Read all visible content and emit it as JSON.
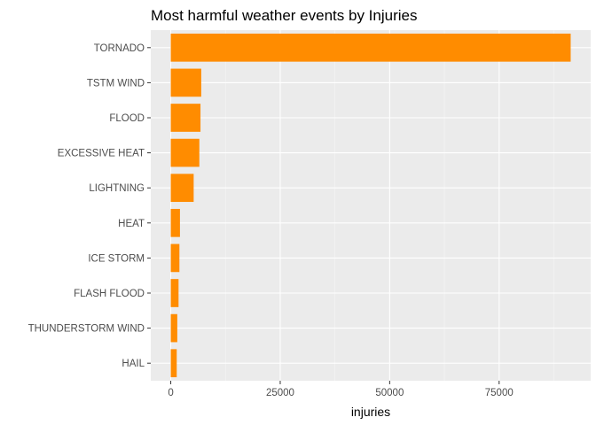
{
  "chart_data": {
    "type": "bar",
    "orientation": "horizontal",
    "title": "Most harmful weather events by Injuries",
    "xlabel": "injuries",
    "ylabel": "",
    "categories": [
      "TORNADO",
      "TSTM WIND",
      "FLOOD",
      "EXCESSIVE HEAT",
      "LIGHTNING",
      "HEAT",
      "ICE STORM",
      "FLASH FLOOD",
      "THUNDERSTORM WIND",
      "HAIL"
    ],
    "values": [
      91346,
      6957,
      6789,
      6525,
      5230,
      2100,
      1975,
      1777,
      1488,
      1361
    ],
    "xlim": [
      -4567,
      95913
    ],
    "xticks": [
      0,
      25000,
      50000,
      75000
    ],
    "xtick_labels": [
      "0",
      "25000",
      "50000",
      "75000"
    ],
    "grid": true,
    "legend": "none",
    "colors": {
      "bar": "#FF8C00",
      "panel": "#EBEBEB",
      "grid_major": "#FFFFFF",
      "grid_minor": "#F5F5F5"
    }
  }
}
